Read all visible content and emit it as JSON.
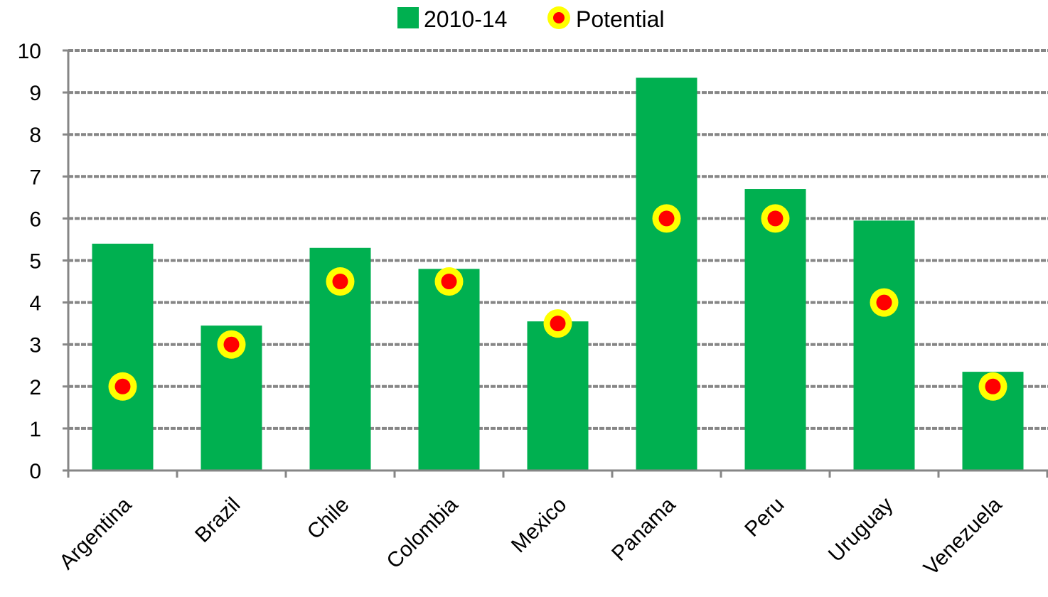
{
  "chart_data": {
    "type": "bar",
    "categories": [
      "Argentina",
      "Brazil",
      "Chile",
      "Colombia",
      "Mexico",
      "Panama",
      "Peru",
      "Uruguay",
      "Venezuela"
    ],
    "series": [
      {
        "name": "2010-14",
        "kind": "bar",
        "color": "#00b050",
        "values": [
          5.4,
          3.45,
          5.3,
          4.8,
          3.55,
          9.35,
          6.7,
          5.95,
          2.35
        ]
      },
      {
        "name": "Potential",
        "kind": "marker",
        "color": "#ff0000",
        "ring_color": "#ffff00",
        "values": [
          2,
          3,
          4.5,
          4.5,
          3.5,
          6,
          6,
          4,
          2
        ]
      }
    ],
    "ylim": [
      0,
      10
    ],
    "yticks": [
      "0",
      "1",
      "2",
      "3",
      "4",
      "5",
      "6",
      "7",
      "8",
      "9",
      "10"
    ],
    "grid": true,
    "legend_position": "top"
  }
}
